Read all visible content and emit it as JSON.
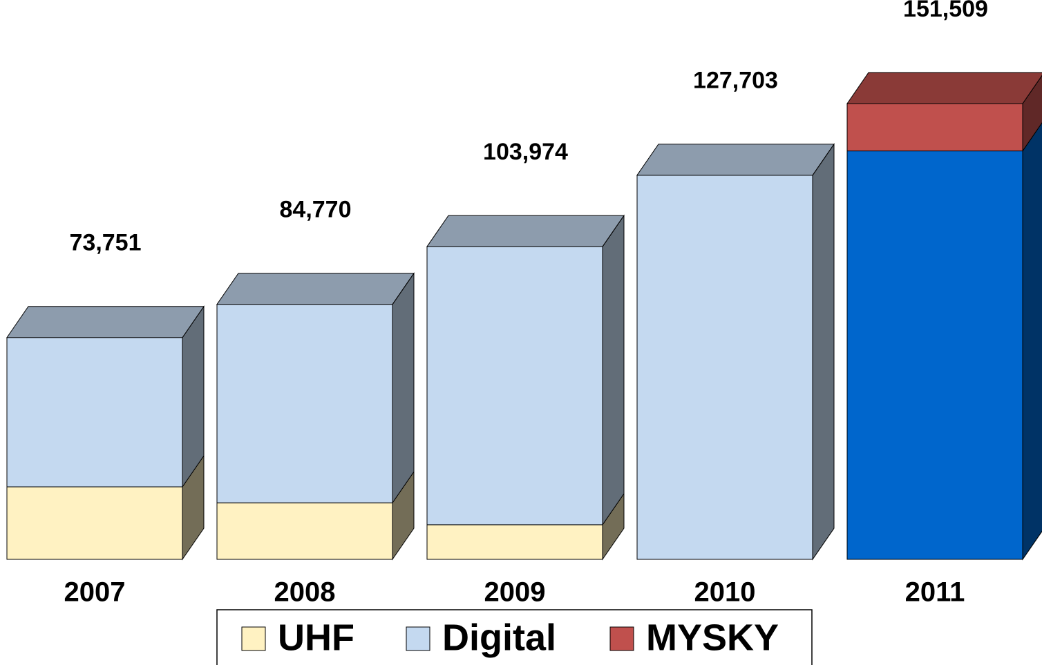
{
  "chart_data": {
    "type": "bar3d-stacked",
    "categories": [
      "2007",
      "2008",
      "2009",
      "2010",
      "2011"
    ],
    "series": [
      {
        "name": "UHF",
        "color": "#fff2c2",
        "values": [
          24100,
          18800,
          11500,
          0,
          0
        ]
      },
      {
        "name": "Digital",
        "color": "#c4d9f0",
        "colors": [
          "#c4d9f0",
          "#c4d9f0",
          "#c4d9f0",
          "#c4d9f0",
          "#0066cc"
        ],
        "values": [
          49651,
          65970,
          92474,
          127703,
          135769
        ]
      },
      {
        "name": "MYSKY",
        "color": "#c0504d",
        "values": [
          0,
          0,
          0,
          0,
          15740
        ]
      }
    ],
    "total_labels": [
      "73,751",
      "84,770",
      "103,974",
      "127,703",
      "151,509"
    ],
    "ylim": [
      0,
      160000
    ]
  }
}
